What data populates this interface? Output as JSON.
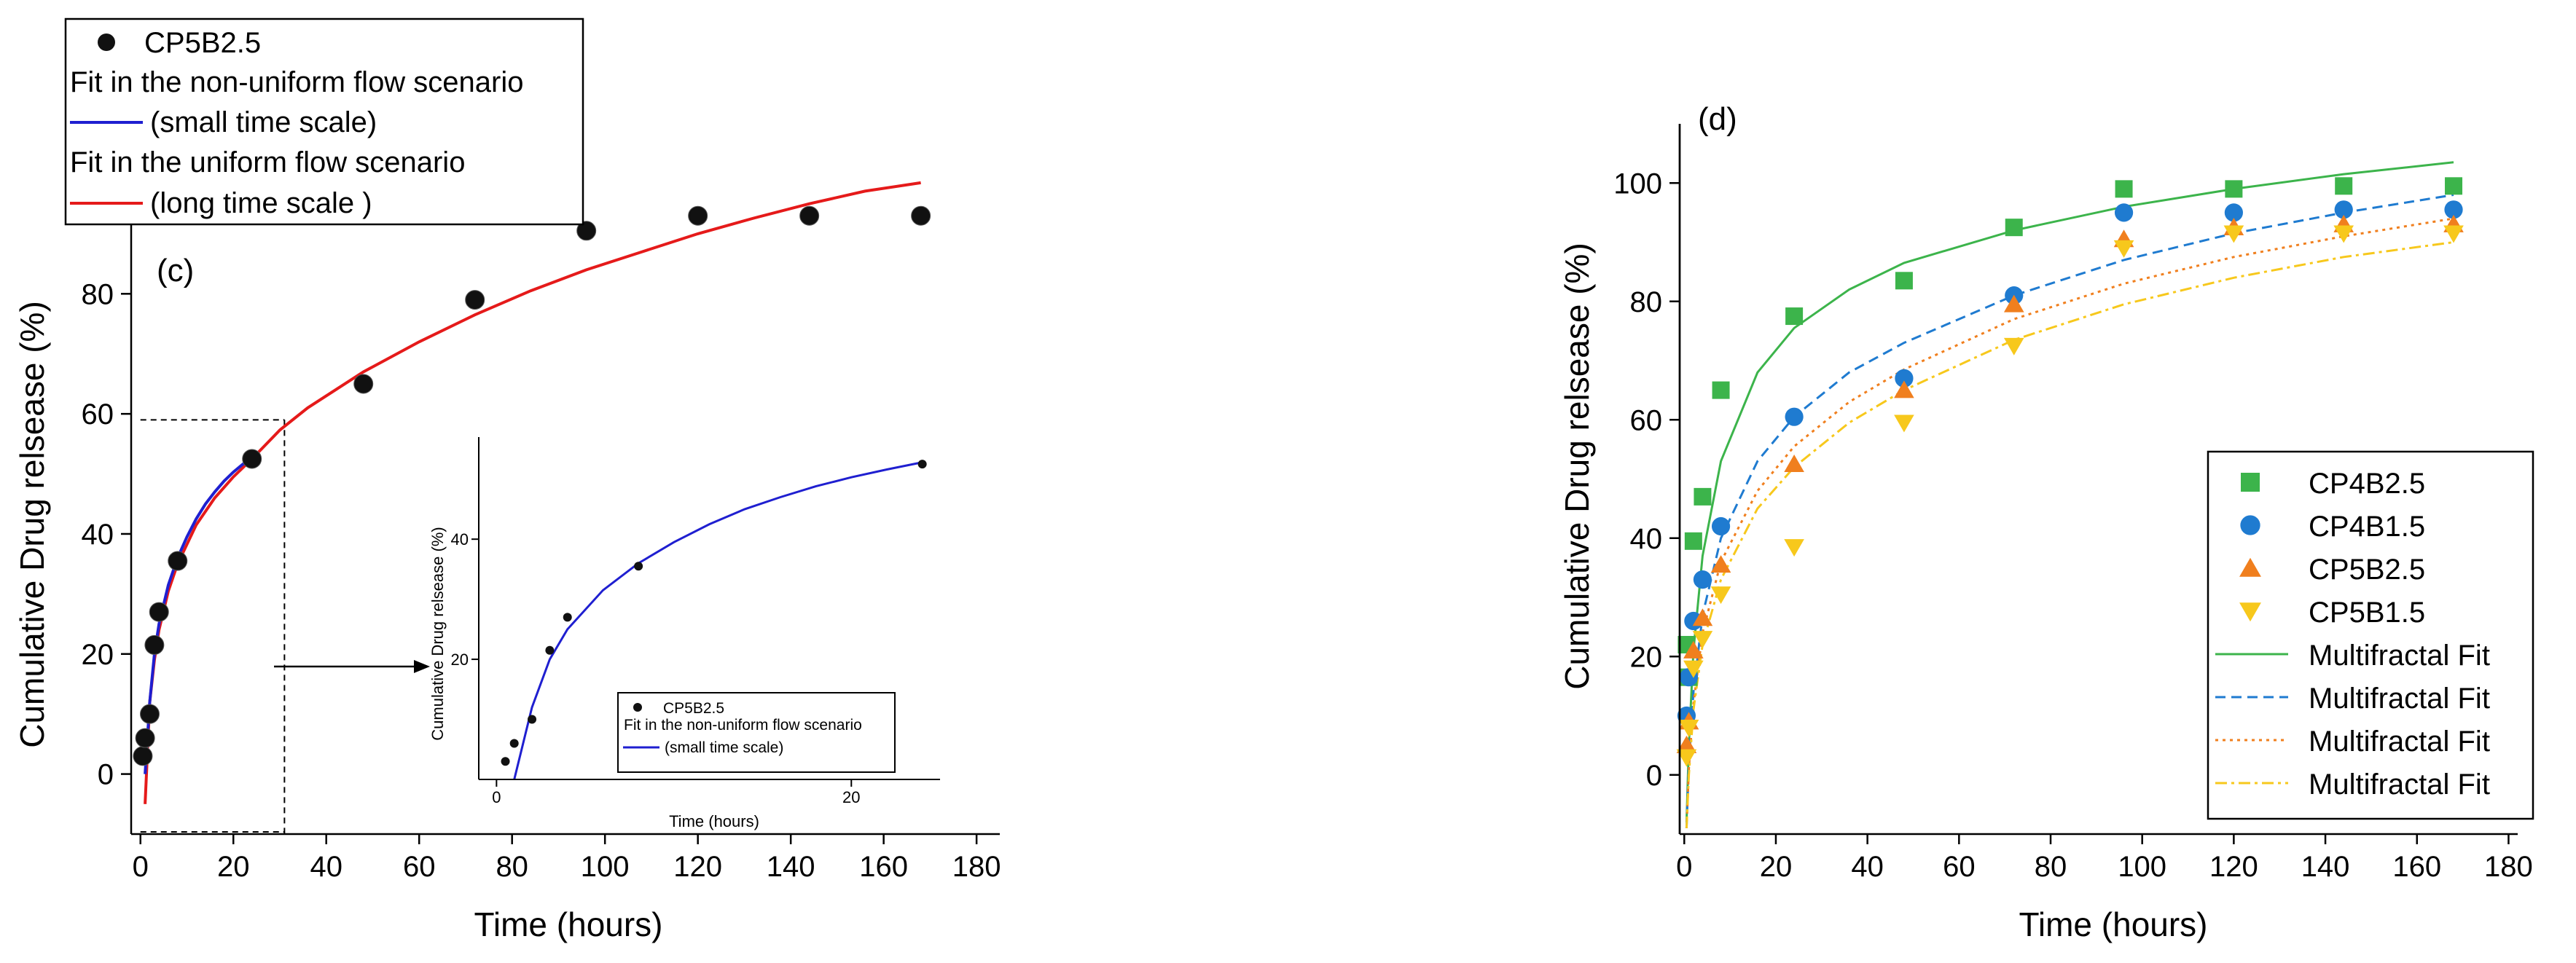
{
  "colors": {
    "axis": "#000000",
    "scatter_black": "#111111",
    "fit_blue": "#1f1fd0",
    "fit_red": "#e51a1a",
    "green": "#3cb44b",
    "blue": "#1f7bd0",
    "orange": "#f07f1e",
    "yellow": "#f7c81c"
  },
  "chart_data": [
    {
      "id": "panel-c",
      "type": "scatter",
      "panel_label": "(c)",
      "xlabel": "Time (hours)",
      "ylabel": "Cumulative Drug relsease (%)",
      "xlim": [
        -2,
        185
      ],
      "ylim": [
        -10,
        98
      ],
      "xticks": [
        0,
        20,
        40,
        60,
        80,
        100,
        120,
        140,
        160,
        180
      ],
      "yticks": [
        0,
        20,
        40,
        60,
        80
      ],
      "series": [
        {
          "name": "CP5B2.5",
          "kind": "points",
          "x": [
            0.5,
            1,
            2,
            3,
            4,
            8,
            24,
            48,
            72,
            96,
            120,
            144,
            168
          ],
          "y": [
            3,
            6,
            10,
            21.5,
            27,
            35.5,
            52.5,
            65,
            79,
            90.5,
            93,
            93,
            93
          ]
        },
        {
          "name": "Fit in the non-uniform flow scenario",
          "name2": "(small time scale)",
          "kind": "line",
          "x": [
            1,
            2,
            3,
            4,
            6,
            8,
            10,
            12,
            14,
            16,
            18,
            20,
            22,
            24
          ],
          "y": [
            0,
            12,
            20,
            25,
            31.5,
            36,
            39.5,
            42.5,
            45,
            47,
            48.8,
            50.3,
            51.6,
            52.8
          ]
        },
        {
          "name": "Fit in the uniform flow scenario",
          "name2": "(long time scale )",
          "kind": "line",
          "x": [
            1,
            2,
            3,
            4,
            6,
            8,
            12,
            16,
            20,
            24,
            30,
            36,
            48,
            60,
            72,
            84,
            96,
            108,
            120,
            132,
            144,
            156,
            168
          ],
          "y": [
            -5,
            12,
            19,
            24,
            30.5,
            35,
            41.5,
            46,
            49.5,
            52.5,
            57.3,
            61,
            67,
            72,
            76.5,
            80.5,
            84,
            87,
            90,
            92.6,
            95,
            97.1,
            98.5
          ]
        }
      ],
      "guide_value": {
        "x": 31,
        "y": 59
      },
      "inset": {
        "xlabel": "Time (hours)",
        "ylabel": "Cumulative Drug relsease (%)",
        "xlim": [
          -1,
          25
        ],
        "ylim": [
          0,
          57
        ],
        "xticks": [
          0,
          20
        ],
        "yticks": [
          20,
          40
        ],
        "legend": [
          "CP5B2.5",
          "Fit in the non-uniform flow scenario",
          "(small time scale)"
        ]
      }
    },
    {
      "id": "panel-d",
      "type": "scatter",
      "panel_label": "(d)",
      "xlabel": "Time (hours)",
      "ylabel": "Cumulative Drug relsease (%)",
      "xlim": [
        -1,
        182
      ],
      "ylim": [
        -10,
        110
      ],
      "xticks": [
        0,
        20,
        40,
        60,
        80,
        100,
        120,
        140,
        160,
        180
      ],
      "yticks": [
        0,
        20,
        40,
        60,
        80,
        100
      ],
      "x": [
        0.5,
        1,
        2,
        4,
        8,
        24,
        48,
        72,
        96,
        120,
        144,
        168
      ],
      "series": [
        {
          "name": "CP4B2.5",
          "marker": "square",
          "y": [
            22,
            16.5,
            39.5,
            47,
            65,
            77.5,
            83.5,
            92.5,
            99,
            99,
            99.5,
            99.5
          ]
        },
        {
          "name": "CP4B1.5",
          "marker": "circle",
          "y": [
            10,
            16.5,
            26,
            33,
            42,
            60.5,
            67,
            81,
            95,
            95,
            95.5,
            95.5
          ]
        },
        {
          "name": "CP5B2.5",
          "marker": "triangle-up",
          "y": [
            5,
            9,
            21,
            26.5,
            35.5,
            52.5,
            65,
            79.5,
            90.5,
            92.5,
            93,
            93
          ]
        },
        {
          "name": "CP5B1.5",
          "marker": "triangle-down",
          "y": [
            3,
            8,
            18,
            23,
            30.5,
            38.5,
            59.5,
            72.5,
            89,
            91.5,
            91.5,
            91.5
          ]
        }
      ],
      "fits": [
        {
          "name": "Multifractal Fit",
          "style": "solid",
          "x": [
            0.5,
            1,
            2,
            4,
            8,
            16,
            24,
            36,
            48,
            72,
            96,
            120,
            144,
            168
          ],
          "y": [
            -8,
            5,
            21,
            37,
            53,
            68,
            75.5,
            82,
            86.5,
            92,
            96,
            99,
            101.5,
            103.5
          ]
        },
        {
          "name": "Multifractal Fit",
          "style": "dashed",
          "x": [
            0.5,
            1,
            2,
            4,
            8,
            16,
            24,
            36,
            48,
            72,
            96,
            120,
            144,
            168
          ],
          "y": [
            -9,
            2,
            14,
            27,
            40,
            53,
            60.5,
            68,
            73,
            81,
            87,
            91.5,
            95,
            98
          ]
        },
        {
          "name": "Multifractal Fit",
          "style": "dotted",
          "x": [
            0.5,
            1,
            2,
            4,
            8,
            16,
            24,
            36,
            48,
            72,
            96,
            120,
            144,
            168
          ],
          "y": [
            -9,
            1,
            12,
            24,
            36,
            48,
            55.5,
            63,
            68.5,
            77,
            83,
            87.5,
            91,
            94
          ]
        },
        {
          "name": "Multifractal Fit",
          "style": "dashdot",
          "x": [
            0.5,
            1,
            2,
            4,
            8,
            16,
            24,
            36,
            48,
            72,
            96,
            120,
            144,
            168
          ],
          "y": [
            -9,
            0,
            11,
            22,
            33,
            45,
            52,
            59.5,
            65,
            73.5,
            79.5,
            84,
            87.5,
            90
          ]
        }
      ],
      "legend_position": "bottom-right"
    }
  ]
}
